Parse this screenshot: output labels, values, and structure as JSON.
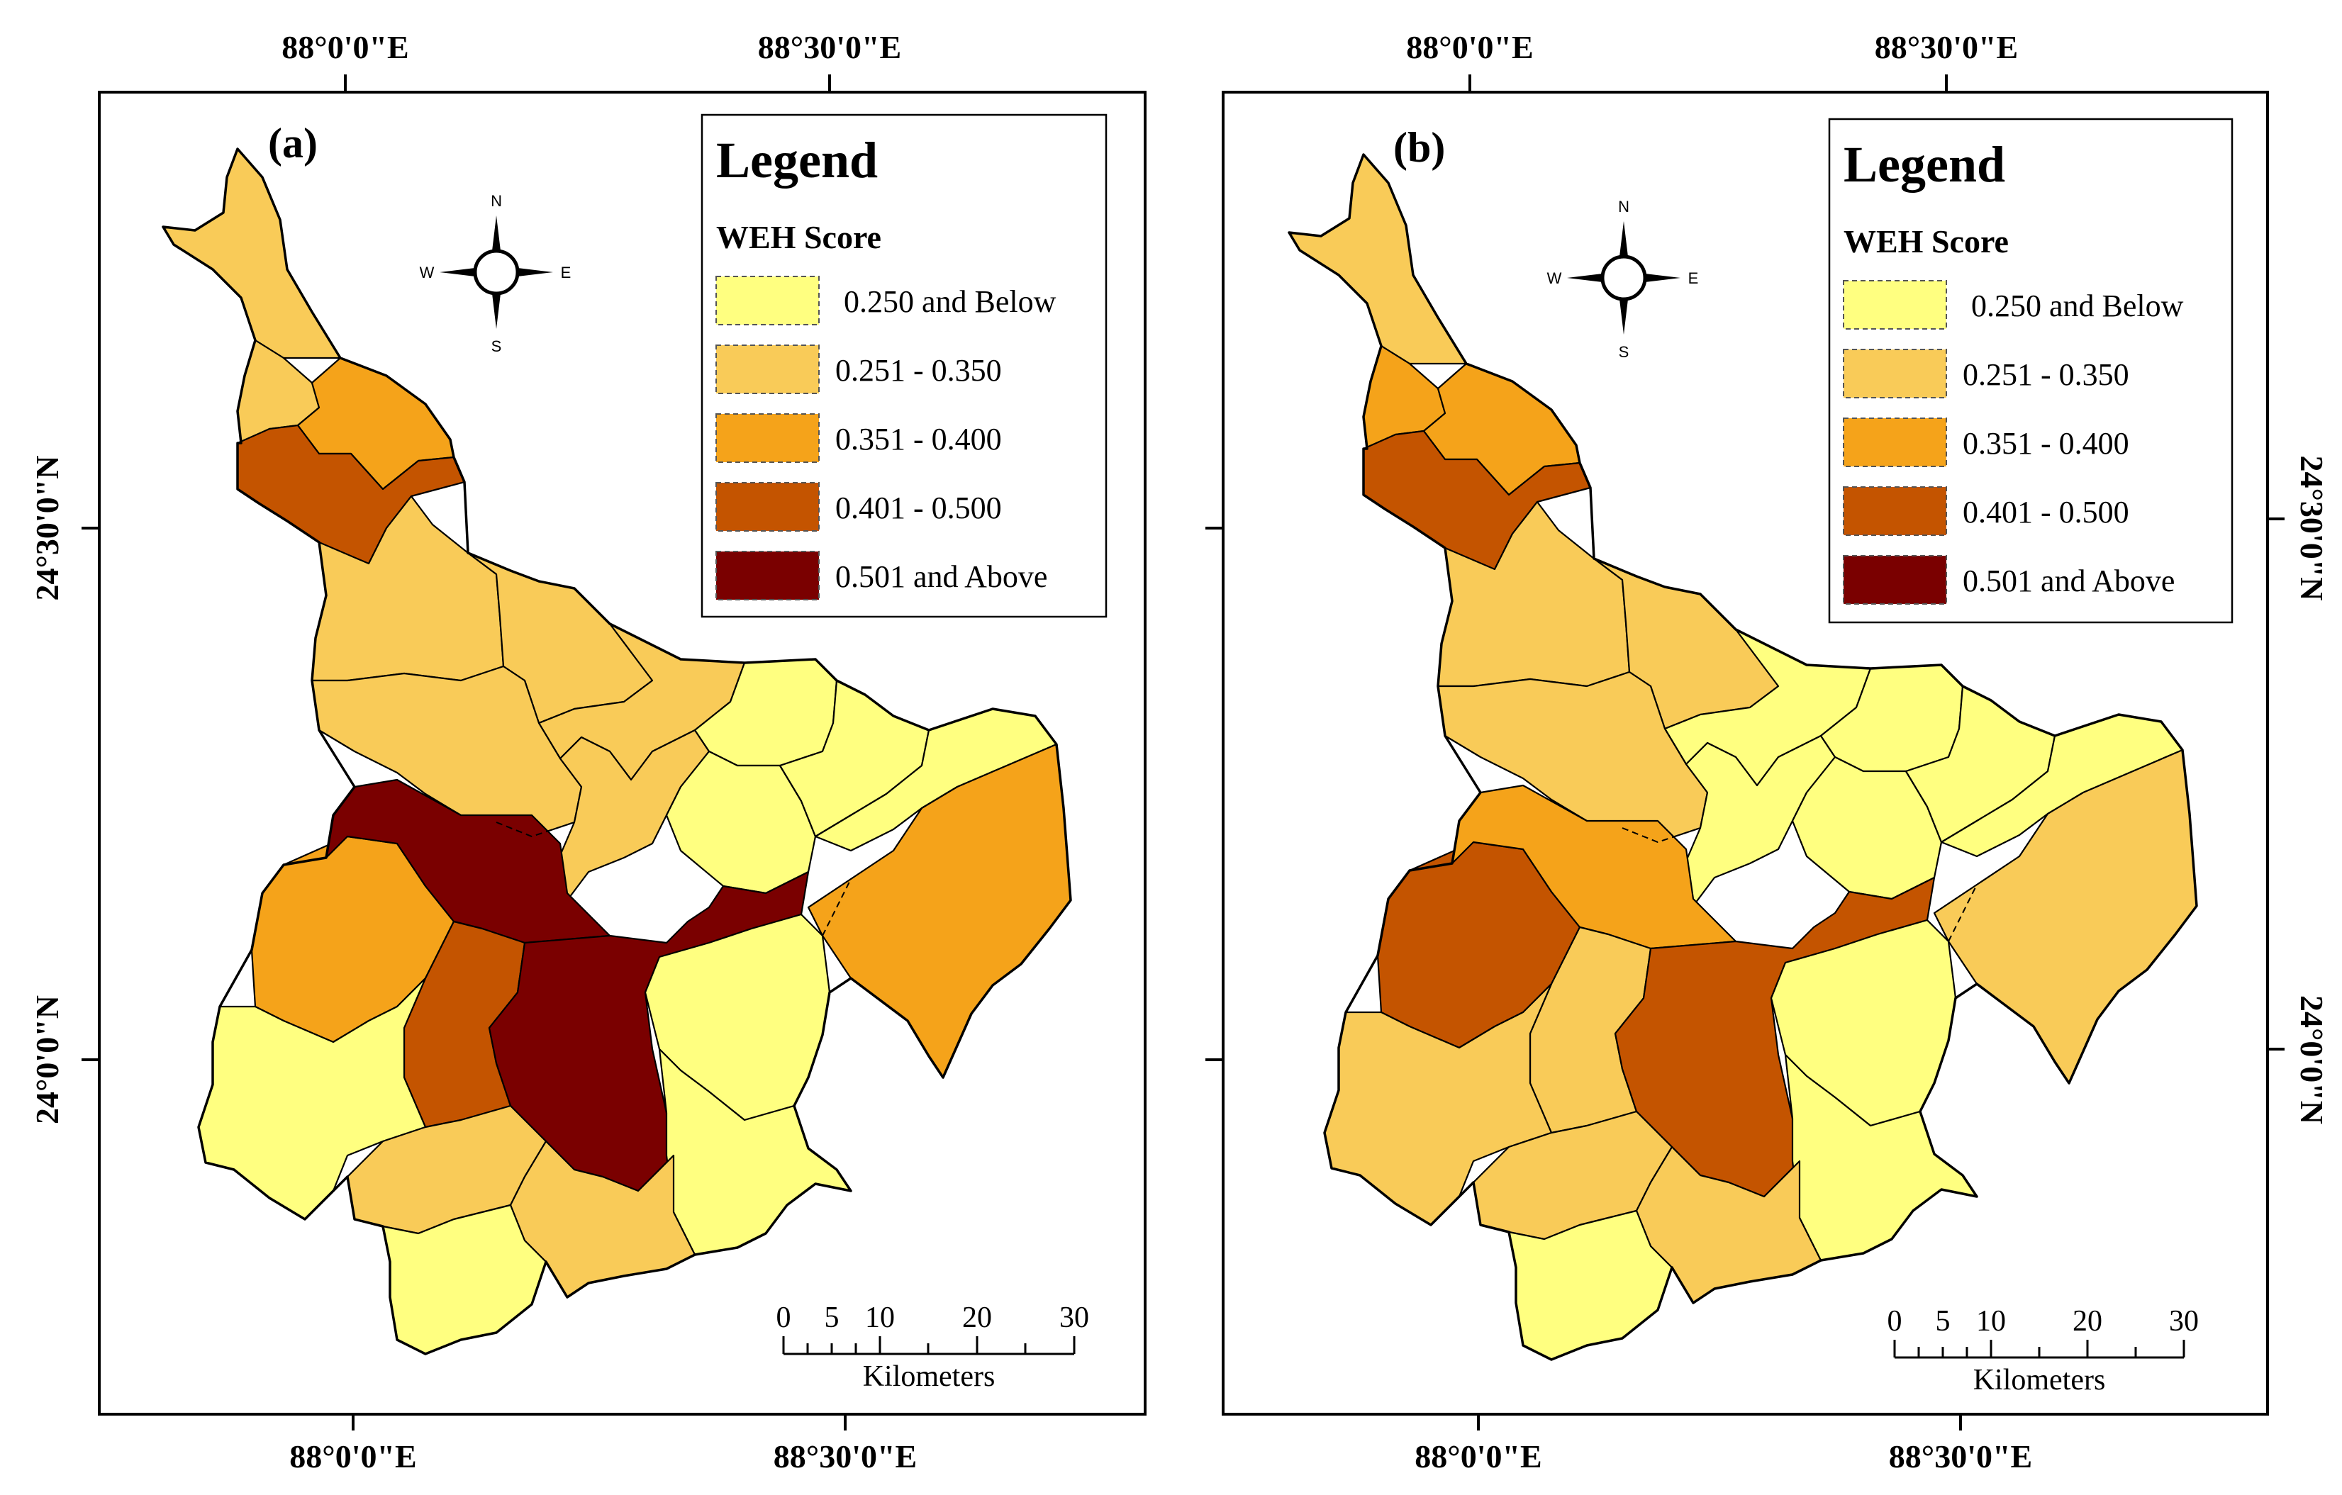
{
  "figure": {
    "panels": [
      {
        "label": "(a)",
        "legend": {
          "title": "Legend",
          "subtitle": "WEH Score",
          "classes": [
            {
              "label": "0.250 and Below",
              "color": "#FFFF80"
            },
            {
              "label": "0.251 - 0.350",
              "color": "#F9CB58"
            },
            {
              "label": "0.351 - 0.400",
              "color": "#F5A31A"
            },
            {
              "label": "0.401 - 0.500",
              "color": "#C45400"
            },
            {
              "label": "0.501 and Above",
              "color": "#7A0000"
            }
          ]
        },
        "top_axis": [
          "88°0'0\"E",
          "88°30'0\"E"
        ],
        "bottom_axis": [
          "88°0'0\"E",
          "88°30'0\"E"
        ],
        "left_axis": [
          "24°30'0\"N",
          "24°0'0\"N"
        ]
      },
      {
        "label": "(b)",
        "legend": {
          "title": "Legend",
          "subtitle": "WEH Score",
          "classes": [
            {
              "label": "0.250 and Below",
              "color": "#FFFF80"
            },
            {
              "label": "0.251 - 0.350",
              "color": "#F9CB58"
            },
            {
              "label": "0.351 - 0.400",
              "color": "#F5A31A"
            },
            {
              "label": "0.401 - 0.500",
              "color": "#C45400"
            },
            {
              "label": "0.501 and Above",
              "color": "#7A0000"
            }
          ]
        },
        "top_axis": [
          "88°0'0\"E",
          "88°30'0\"E"
        ],
        "bottom_axis": [
          "88°0'0\"E",
          "88°30'0\"E"
        ],
        "right_axis": [
          "24°30'0\"N",
          "24°0'0\"N"
        ]
      }
    ],
    "compass": {
      "n": "N",
      "s": "S",
      "e": "E",
      "w": "W"
    },
    "scale_bar": {
      "ticks": [
        "0",
        "5",
        "10",
        "20",
        "30"
      ],
      "unit": "Kilometers"
    }
  }
}
